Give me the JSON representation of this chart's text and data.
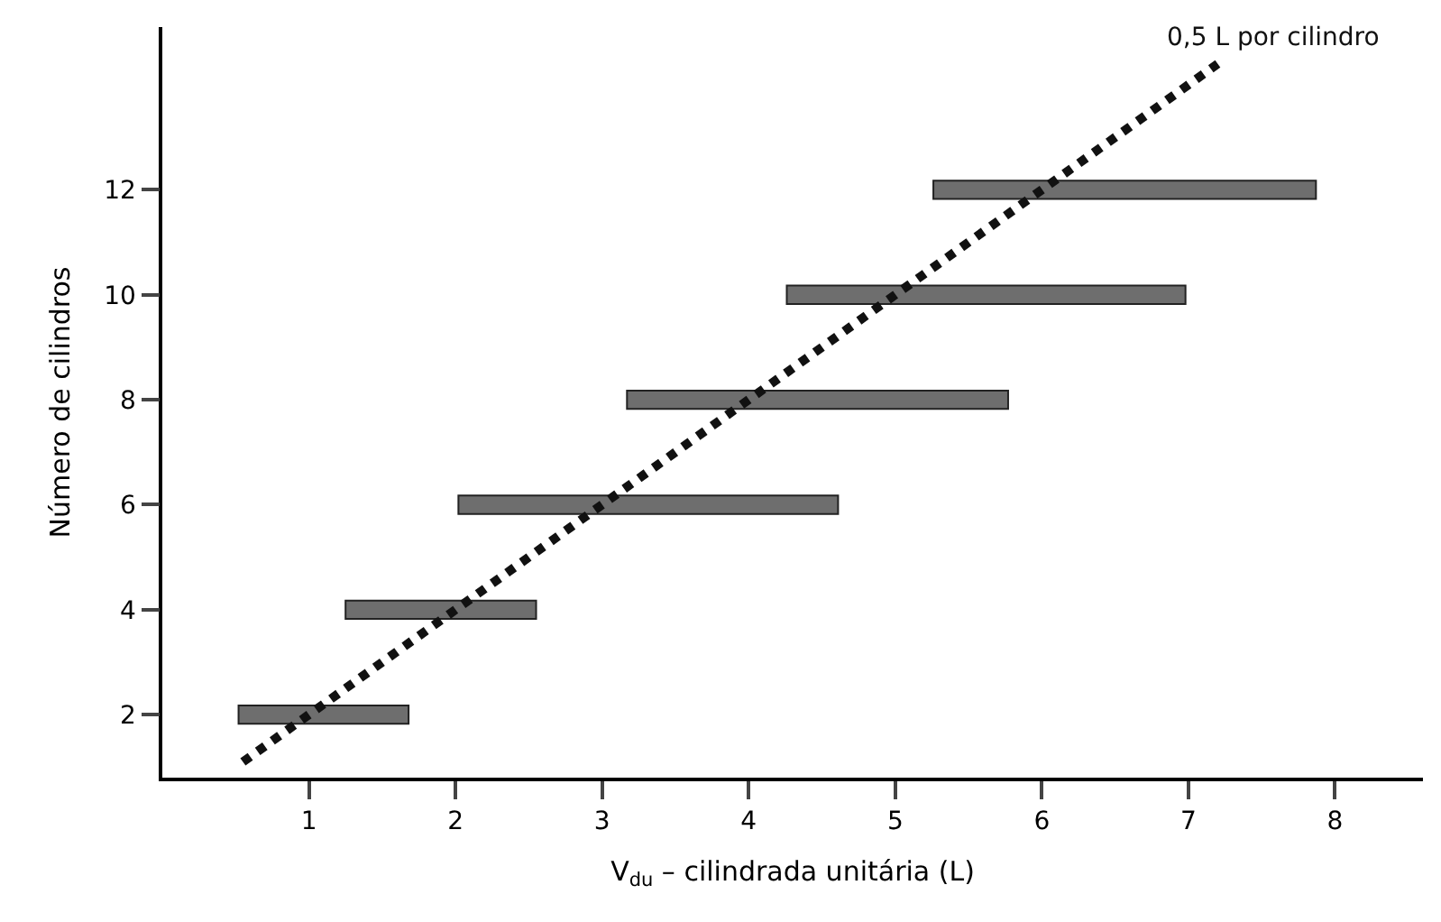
{
  "chart_data": {
    "type": "bar",
    "orientation": "horizontal",
    "xlabel": "V$_{du}$ – cilindrada unitária (L)",
    "ylabel": "Número de cilindros",
    "xlim": [
      0,
      8.6
    ],
    "xticks": [
      1,
      2,
      3,
      4,
      5,
      6,
      7,
      8
    ],
    "ylim": [
      0.8,
      15.1
    ],
    "yticks": [
      2,
      4,
      6,
      8,
      10,
      12
    ],
    "legend": false,
    "series": [
      {
        "color": "#6e6e6e",
        "x": [
          2,
          4,
          6,
          8,
          10,
          12
        ],
        "base": [
          0.52,
          1.25,
          2.02,
          3.17,
          4.26,
          5.26
        ],
        "values": [
          1.16,
          1.3,
          2.59,
          2.6,
          2.72,
          2.61
        ]
      },
      {
        "type": "line",
        "name": "0,5 L por cilindro",
        "color": "#111111",
        "line_style": "dotted",
        "x": [
          1.1,
          14.4
        ],
        "values": [
          0.55,
          7.2
        ]
      }
    ]
  }
}
